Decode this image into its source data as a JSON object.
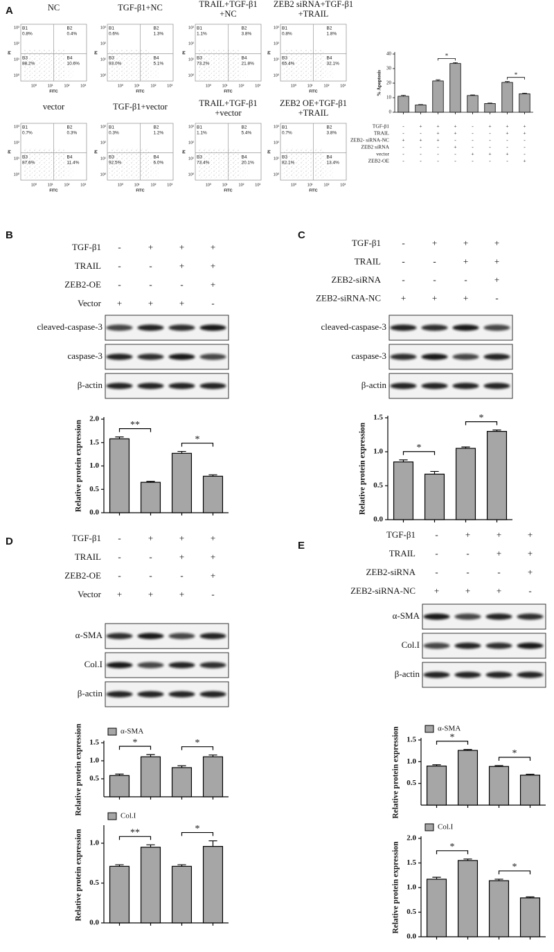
{
  "panels": [
    {
      "label": "A",
      "flow_axis": {
        "x": "FITC",
        "y": "PI",
        "ticks": [
          "10⁰",
          "10¹",
          "10²",
          "10³"
        ]
      },
      "flow_plots": [
        {
          "title": [
            "NC"
          ],
          "quadrants": [
            {
              "name": "B1",
              "percent": "0.8%"
            },
            {
              "name": "B2",
              "percent": "0.4%"
            },
            {
              "name": "B3",
              "percent": "88.2%"
            },
            {
              "name": "B4",
              "percent": "10.6%"
            }
          ]
        },
        {
          "title": [
            "TGF-β1+NC"
          ],
          "quadrants": [
            {
              "name": "B1",
              "percent": "0.6%"
            },
            {
              "name": "B2",
              "percent": "1.3%"
            },
            {
              "name": "B3",
              "percent": "93.0%"
            },
            {
              "name": "B4",
              "percent": "5.1%"
            }
          ]
        },
        {
          "title": [
            "TRAIL+TGF-β1",
            "+NC"
          ],
          "quadrants": [
            {
              "name": "B1",
              "percent": "1.1%"
            },
            {
              "name": "B2",
              "percent": "3.8%"
            },
            {
              "name": "B3",
              "percent": "73.2%"
            },
            {
              "name": "B4",
              "percent": "21.8%"
            }
          ]
        },
        {
          "title": [
            "ZEB2 siRNA+TGF-β1",
            "+TRAIL"
          ],
          "quadrants": [
            {
              "name": "B1",
              "percent": "0.8%"
            },
            {
              "name": "B2",
              "percent": "1.8%"
            },
            {
              "name": "B3",
              "percent": "65.4%"
            },
            {
              "name": "B4",
              "percent": "32.1%"
            }
          ]
        },
        {
          "title": [
            "vector"
          ],
          "quadrants": [
            {
              "name": "B1",
              "percent": "0.7%"
            },
            {
              "name": "B2",
              "percent": "0.3%"
            },
            {
              "name": "B3",
              "percent": "87.6%"
            },
            {
              "name": "B4",
              "percent": "11.4%"
            }
          ]
        },
        {
          "title": [
            "TGF-β1+vector"
          ],
          "quadrants": [
            {
              "name": "B1",
              "percent": "0.3%"
            },
            {
              "name": "B2",
              "percent": "1.2%"
            },
            {
              "name": "B3",
              "percent": "92.5%"
            },
            {
              "name": "B4",
              "percent": "6.0%"
            }
          ]
        },
        {
          "title": [
            "TRAIL+TGF-β1",
            "+vector"
          ],
          "quadrants": [
            {
              "name": "B1",
              "percent": "1.1%"
            },
            {
              "name": "B2",
              "percent": "5.4%"
            },
            {
              "name": "B3",
              "percent": "73.4%"
            },
            {
              "name": "B4",
              "percent": "20.1%"
            }
          ]
        },
        {
          "title": [
            "ZEB2 OE+TGF-β1",
            "+TRAIL"
          ],
          "quadrants": [
            {
              "name": "B1",
              "percent": "0.7%"
            },
            {
              "name": "B2",
              "percent": "3.8%"
            },
            {
              "name": "B3",
              "percent": "82.1%"
            },
            {
              "name": "B4",
              "percent": "13.4%"
            }
          ]
        }
      ],
      "conditions": [
        {
          "name": "TGF-β1",
          "signs": [
            "-",
            "+",
            "+",
            "+",
            "-",
            "+",
            "+",
            "+"
          ]
        },
        {
          "name": "TRAIL",
          "signs": [
            "-",
            "-",
            "+",
            "+",
            "-",
            "-",
            "+",
            "+"
          ]
        },
        {
          "name": "ZEB2- siRNA-NC",
          "signs": [
            "+",
            "+",
            "+",
            "-",
            "-",
            "-",
            "-",
            "-"
          ]
        },
        {
          "name": "ZEB2 siRNA",
          "signs": [
            "-",
            "-",
            "-",
            "+",
            "-",
            "-",
            "-",
            "-"
          ]
        },
        {
          "name": "vector",
          "signs": [
            "-",
            "-",
            "-",
            "-",
            "+",
            "+",
            "+",
            "-"
          ]
        },
        {
          "name": "ZEB2-OE",
          "signs": [
            "-",
            "-",
            "-",
            "-",
            "-",
            "-",
            "-",
            "+"
          ]
        }
      ]
    },
    {
      "label": "B",
      "conditions": [
        {
          "name": "TGF-β1",
          "signs": [
            "-",
            "+",
            "+",
            "+"
          ]
        },
        {
          "name": "TRAIL",
          "signs": [
            "-",
            "-",
            "+",
            "+"
          ]
        },
        {
          "name": "ZEB2-OE",
          "signs": [
            "-",
            "-",
            "-",
            "+"
          ]
        },
        {
          "name": "Vector",
          "signs": [
            "+",
            "+",
            "+",
            "-"
          ]
        }
      ],
      "blots": [
        "cleaved-caspase-3",
        "caspase-3",
        "β-actin"
      ]
    },
    {
      "label": "C",
      "conditions": [
        {
          "name": "TGF-β1",
          "signs": [
            "-",
            "+",
            "+",
            "+"
          ]
        },
        {
          "name": "TRAIL",
          "signs": [
            "-",
            "-",
            "+",
            "+"
          ]
        },
        {
          "name": "ZEB2-siRNA",
          "signs": [
            "-",
            "-",
            "-",
            "+"
          ]
        },
        {
          "name": "ZEB2-siRNA-NC",
          "signs": [
            "+",
            "+",
            "+",
            "-"
          ]
        }
      ],
      "blots": [
        "cleaved-caspase-3",
        "caspase-3",
        "β-actin"
      ]
    },
    {
      "label": "D",
      "conditions": [
        {
          "name": "TGF-β1",
          "signs": [
            "-",
            "+",
            "+",
            "+"
          ]
        },
        {
          "name": "TRAIL",
          "signs": [
            "-",
            "-",
            "+",
            "+"
          ]
        },
        {
          "name": "ZEB2-OE",
          "signs": [
            "-",
            "-",
            "-",
            "+"
          ]
        },
        {
          "name": "Vector",
          "signs": [
            "+",
            "+",
            "+",
            "-"
          ]
        }
      ],
      "blots": [
        "α-SMA",
        "Col.I",
        "β-actin"
      ]
    },
    {
      "label": "E",
      "conditions": [
        {
          "name": "TGF-β1",
          "signs": [
            "-",
            "+",
            "+",
            "+"
          ]
        },
        {
          "name": "TRAIL",
          "signs": [
            "-",
            "-",
            "+",
            "+"
          ]
        },
        {
          "name": "ZEB2-siRNA",
          "signs": [
            "-",
            "-",
            "-",
            "+"
          ]
        },
        {
          "name": "ZEB2-siRNA-NC",
          "signs": [
            "+",
            "+",
            "+",
            "-"
          ]
        }
      ],
      "blots": [
        "α-SMA",
        "Col.I",
        "β-actin"
      ]
    }
  ],
  "chart_data": [
    {
      "type": "bar",
      "ylabel": "% Apoptosis",
      "values": [
        11,
        5,
        21.5,
        33.5,
        11.5,
        6,
        20.5,
        12.7
      ],
      "errors": [
        0.6,
        0.3,
        0.8,
        0.6,
        0.4,
        0.3,
        0.6,
        0.4
      ],
      "color": "#a6a6a6",
      "ylim": [
        0,
        40
      ],
      "yticks": [
        0,
        10,
        20,
        30,
        40
      ],
      "annotations": [
        "*",
        "*"
      ]
    },
    {
      "type": "bar",
      "ylabel": "Relative protein expression",
      "values": [
        1.58,
        0.65,
        1.27,
        0.78
      ],
      "errors": [
        0.04,
        0.02,
        0.04,
        0.03
      ],
      "color": "#a6a6a6",
      "ylim": [
        0,
        2
      ],
      "yticks": [
        {
          "value": 0,
          "label": "0.0"
        },
        0.5,
        {
          "value": 1,
          "label": "1.0"
        },
        1.5,
        {
          "value": 2,
          "label": "2.0"
        }
      ],
      "annotations": [
        "**",
        "*"
      ]
    },
    {
      "type": "bar",
      "ylabel": "Relative protein expression",
      "values": [
        0.85,
        0.67,
        1.05,
        1.3
      ],
      "errors": [
        0.03,
        0.04,
        0.02,
        0.02
      ],
      "color": "#a6a6a6",
      "ylim": [
        0,
        1.5
      ],
      "yticks": [
        {
          "value": 0,
          "label": "0.0"
        },
        0.5,
        {
          "value": 1,
          "label": "1.0"
        },
        1.5
      ],
      "annotations": [
        "*",
        "*"
      ]
    },
    {
      "type": "bar",
      "ylabel": "Relative protein expression",
      "series": [
        {
          "name": "α-SMA",
          "color": "#a6a6a6",
          "values": [
            0.59,
            1.11,
            0.81,
            1.11
          ],
          "errors": [
            0.04,
            0.06,
            0.05,
            0.05
          ]
        }
      ],
      "ylim": [
        0,
        1.5
      ],
      "yticks": [
        0.5,
        {
          "value": 1,
          "label": "1.0"
        },
        1.5
      ],
      "annotations": [
        "*",
        "*"
      ]
    },
    {
      "type": "bar",
      "ylabel": "Relative protein expression",
      "series": [
        {
          "name": "Col.I",
          "color": "#a6a6a6",
          "values": [
            0.71,
            0.95,
            0.71,
            0.96
          ],
          "errors": [
            0.02,
            0.03,
            0.02,
            0.07
          ]
        }
      ],
      "ylim": [
        0,
        1.2
      ],
      "yticks": [
        {
          "value": 0,
          "label": "0.0"
        },
        0.5,
        {
          "value": 1,
          "label": "1.0"
        }
      ],
      "annotations": [
        "**",
        "*"
      ]
    },
    {
      "type": "bar",
      "ylabel": "Relative protein expression",
      "series": [
        {
          "name": "α-SMA",
          "color": "#a6a6a6",
          "values": [
            0.9,
            1.26,
            0.89,
            0.69
          ],
          "errors": [
            0.03,
            0.02,
            0.02,
            0.02
          ]
        }
      ],
      "ylim": [
        0,
        1.5
      ],
      "yticks": [
        0.5,
        {
          "value": 1,
          "label": "1.0"
        },
        1.5
      ],
      "annotations": [
        "*",
        "*"
      ]
    },
    {
      "type": "bar",
      "ylabel": "Relative protein expression",
      "series": [
        {
          "name": "Col.I",
          "color": "#a6a6a6",
          "values": [
            1.17,
            1.55,
            1.14,
            0.79
          ],
          "errors": [
            0.04,
            0.03,
            0.03,
            0.02
          ]
        }
      ],
      "ylim": [
        0,
        2
      ],
      "yticks": [
        {
          "value": 0,
          "label": "0.0"
        },
        0.5,
        {
          "value": 1,
          "label": "1.0"
        },
        1.5,
        {
          "value": 2,
          "label": "2.0"
        }
      ],
      "annotations": [
        "*",
        "*"
      ]
    }
  ]
}
